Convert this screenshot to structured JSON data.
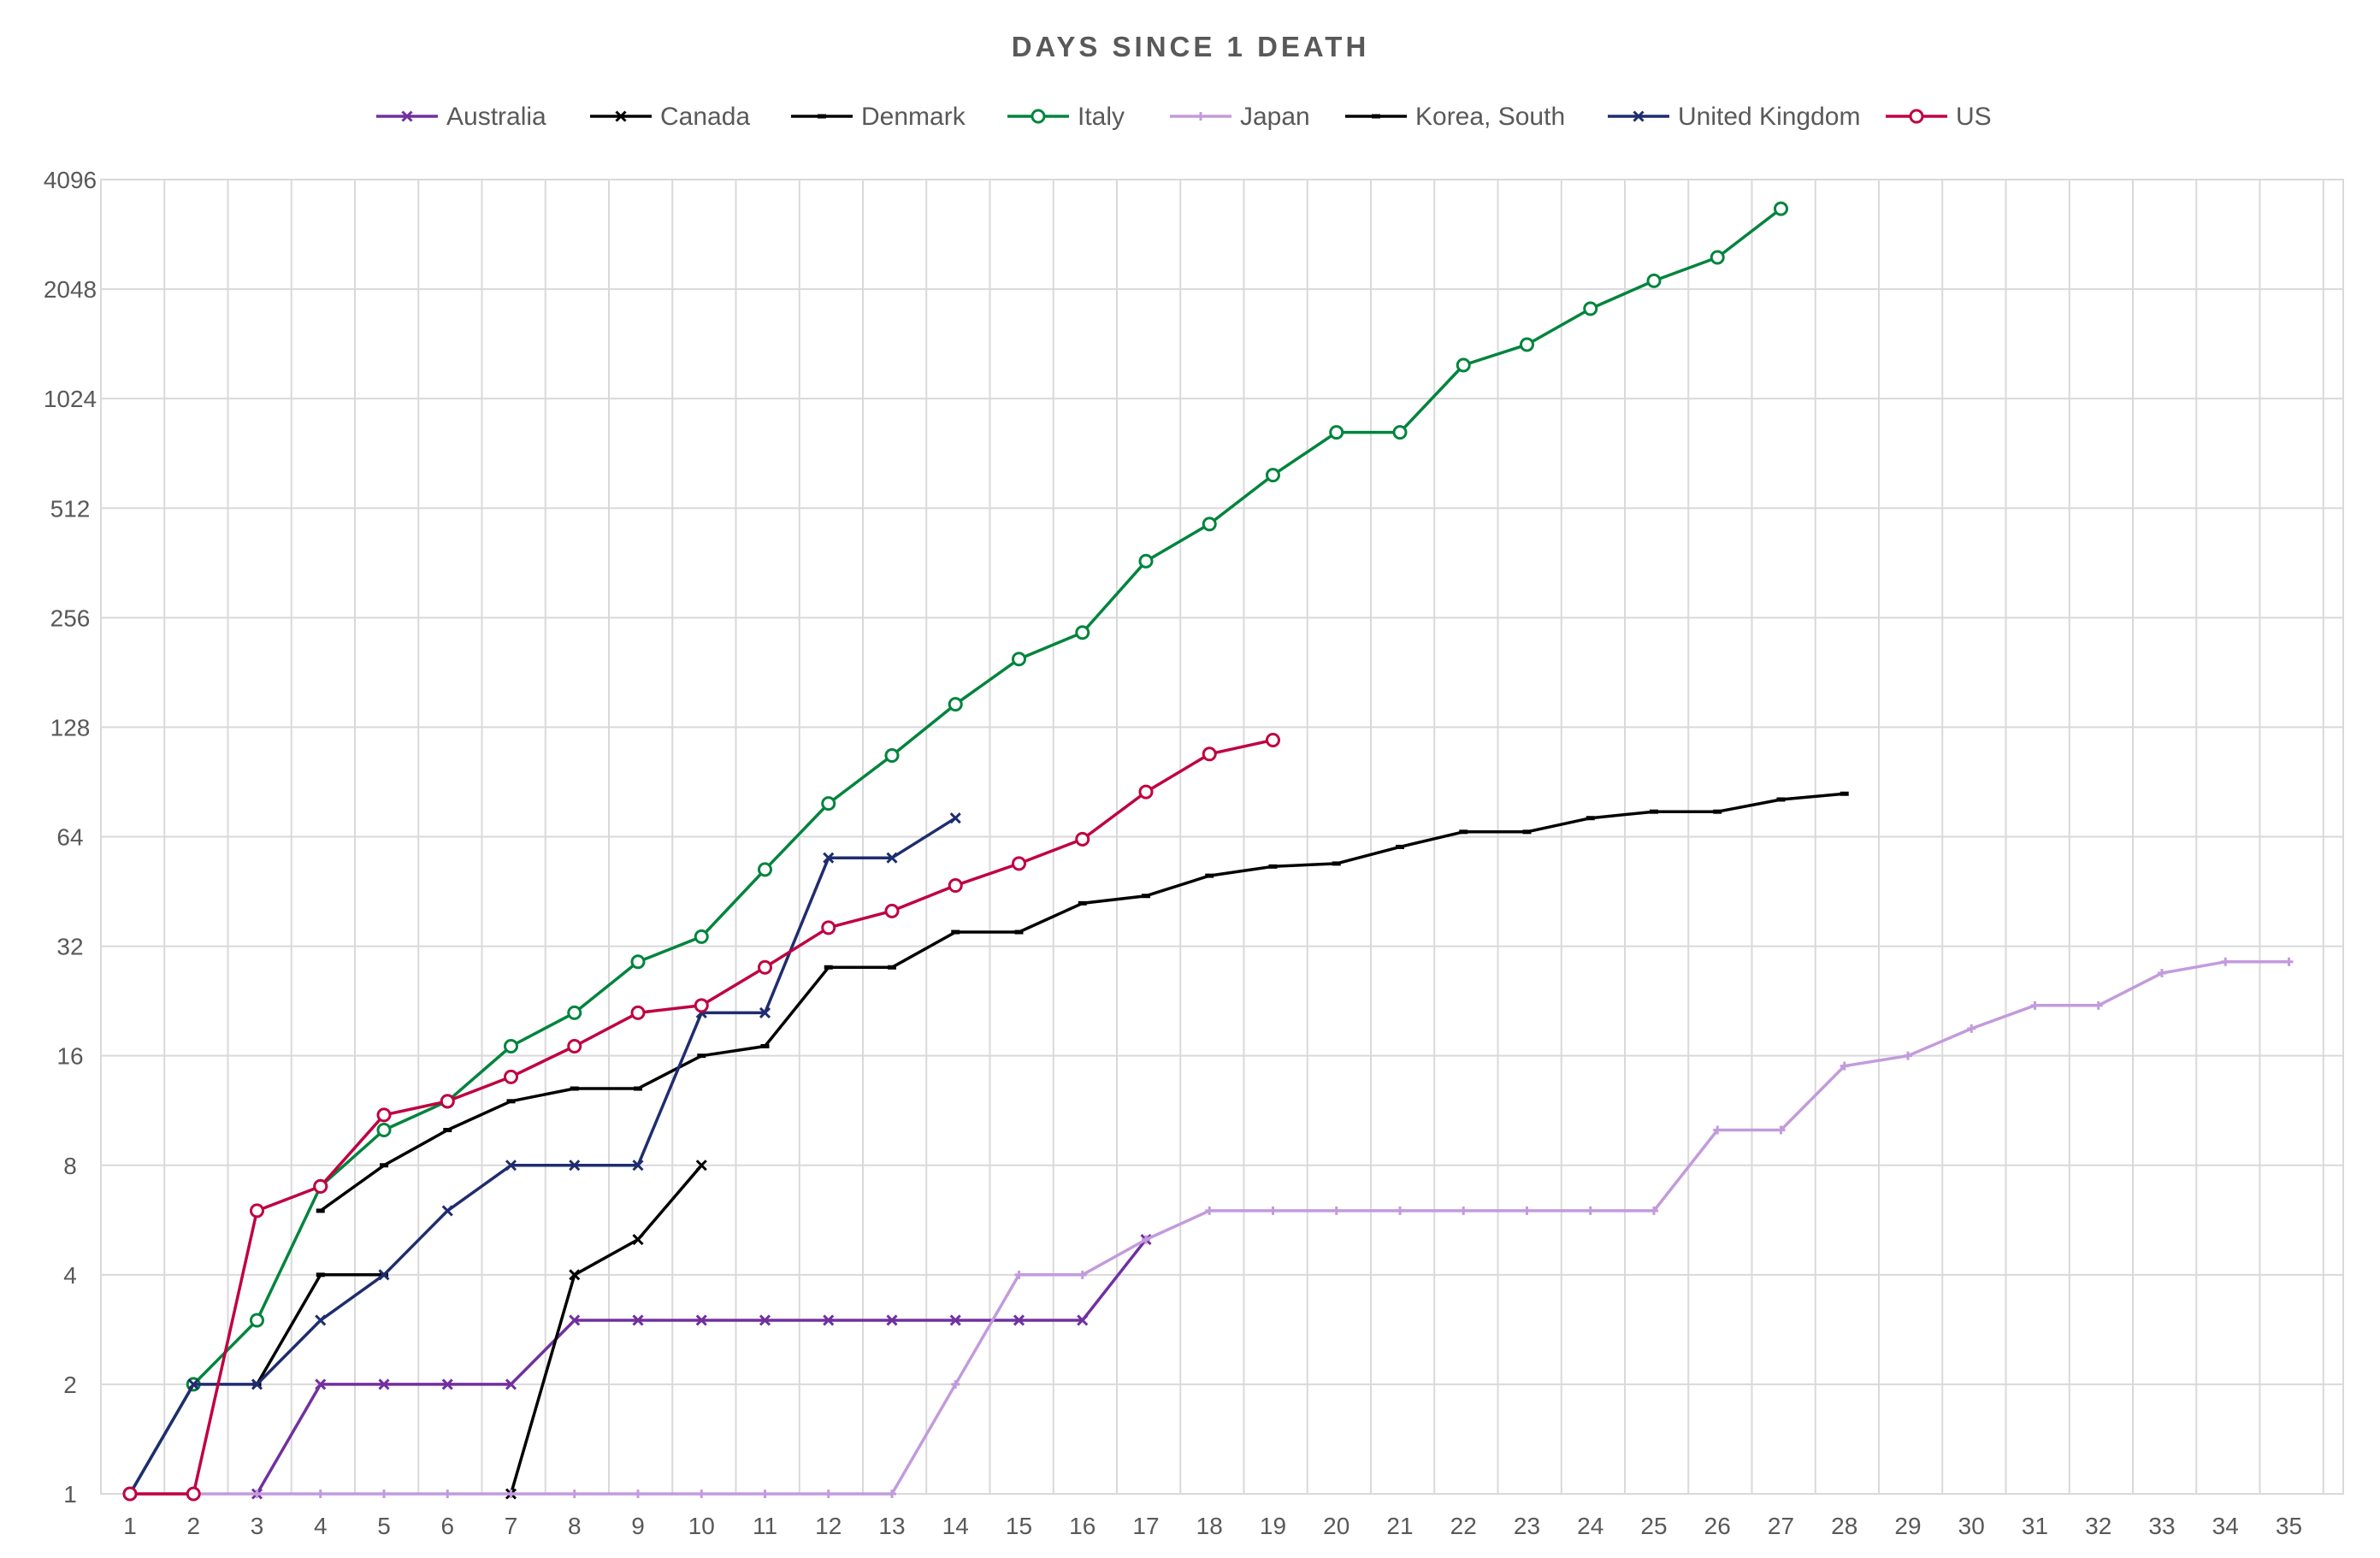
{
  "chart_data": {
    "type": "line",
    "title": "DAYS SINCE 1 DEATH",
    "xlabel": "",
    "ylabel": "",
    "y_scale": "log2",
    "ylim": [
      1,
      4096
    ],
    "xlim": [
      1,
      35
    ],
    "grid": true,
    "legend_position": "top",
    "x_ticks": [
      "1",
      "2",
      "3",
      "4",
      "5",
      "6",
      "7",
      "8",
      "9",
      "10",
      "11",
      "12",
      "13",
      "14",
      "15",
      "16",
      "17",
      "18",
      "19",
      "20",
      "21",
      "22",
      "23",
      "24",
      "25",
      "26",
      "27",
      "28",
      "29",
      "30",
      "31",
      "32",
      "33",
      "34",
      "35"
    ],
    "y_ticks": [
      "1",
      "2",
      "4",
      "8",
      "16",
      "32",
      "64",
      "128",
      "256",
      "512",
      "1024",
      "2048",
      "4096"
    ],
    "series": [
      {
        "name": "Australia",
        "color": "#7030A0",
        "marker": "x",
        "x": [
          3,
          4,
          5,
          6,
          7,
          8,
          9,
          10,
          11,
          12,
          13,
          14,
          15,
          16,
          17
        ],
        "y": [
          1,
          2,
          2,
          2,
          2,
          3,
          3,
          3,
          3,
          3,
          3,
          3,
          3,
          3,
          5
        ]
      },
      {
        "name": "Canada",
        "color": "#000000",
        "marker": "x",
        "x": [
          7,
          8,
          9,
          10
        ],
        "y": [
          1,
          4,
          5,
          8
        ]
      },
      {
        "name": "Denmark",
        "color": "#000000",
        "marker": "dash",
        "x": [
          3,
          4,
          5
        ],
        "y": [
          2,
          4,
          4
        ]
      },
      {
        "name": "Italy",
        "color": "#00843D",
        "marker": "circle",
        "x": [
          1,
          2,
          3,
          4,
          5,
          6,
          7,
          8,
          9,
          10,
          11,
          12,
          13,
          14,
          15,
          16,
          17,
          18,
          19,
          20,
          21,
          22,
          23,
          24,
          25,
          26,
          27
        ],
        "y": [
          1,
          2,
          3,
          7,
          10,
          12,
          17,
          21,
          29,
          34,
          52,
          79,
          107,
          148,
          197,
          233,
          366,
          463,
          631,
          827,
          827,
          1266,
          1441,
          1809,
          2158,
          2503,
          3405
        ]
      },
      {
        "name": "Japan",
        "color": "#C29BDC",
        "marker": "plus",
        "x": [
          1,
          2,
          3,
          4,
          5,
          6,
          7,
          8,
          9,
          10,
          11,
          12,
          13,
          14,
          15,
          16,
          17,
          18,
          19,
          20,
          21,
          22,
          23,
          24,
          25,
          26,
          27,
          28,
          29,
          30,
          31,
          32,
          33,
          34,
          35
        ],
        "y": [
          1,
          1,
          1,
          1,
          1,
          1,
          1,
          1,
          1,
          1,
          1,
          1,
          1,
          2,
          4,
          4,
          5,
          6,
          6,
          6,
          6,
          6,
          6,
          6,
          6,
          10,
          10,
          15,
          16,
          19,
          22,
          22,
          27,
          29,
          29
        ]
      },
      {
        "name": "Korea, South",
        "color": "#000000",
        "marker": "dash",
        "x": [
          4,
          5,
          6,
          7,
          8,
          9,
          10,
          11,
          12,
          13,
          14,
          15,
          16,
          17,
          18,
          19,
          20,
          21,
          22,
          23,
          24,
          25,
          26,
          27,
          28
        ],
        "y": [
          6,
          8,
          10,
          12,
          13,
          13,
          16,
          17,
          28,
          28,
          35,
          35,
          42,
          44,
          50,
          53,
          54,
          60,
          66,
          66,
          72,
          75,
          75,
          81,
          84
        ]
      },
      {
        "name": "United Kingdom",
        "color": "#1F2D6E",
        "marker": "x",
        "x": [
          1,
          2,
          3,
          4,
          5,
          6,
          7,
          8,
          9,
          10,
          11,
          12,
          13,
          14
        ],
        "y": [
          1,
          2,
          2,
          3,
          4,
          6,
          8,
          8,
          8,
          21,
          21,
          56,
          56,
          72
        ]
      },
      {
        "name": "US",
        "color": "#C00040",
        "marker": "circle",
        "x": [
          1,
          2,
          3,
          4,
          5,
          6,
          7,
          8,
          9,
          10,
          11,
          12,
          13,
          14,
          15,
          16,
          17,
          18,
          19
        ],
        "y": [
          1,
          1,
          6,
          7,
          11,
          12,
          14,
          17,
          21,
          22,
          28,
          36,
          40,
          47,
          54,
          63,
          85,
          108,
          118
        ]
      }
    ]
  }
}
